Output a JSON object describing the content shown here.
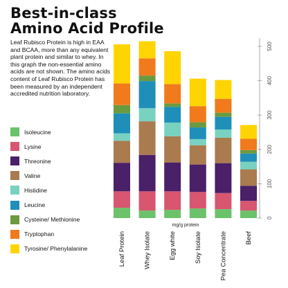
{
  "header": {
    "title_line1": "Best-in-class",
    "title_line2": "Amino Acid Profile",
    "description": "Leaf Rubisco Protein is high in EAA and BCAA, more than any equivalent plant protein and similar to whey. In this graph the non-essential amino acids are not shown. The amino acids content of Leaf Rubisco Protein has been measured by an independent accredited nutrition laboratory."
  },
  "chart_data": {
    "type": "bar",
    "stacked": true,
    "xlabel": "mg/g protein",
    "ylabel": "",
    "ylim": [
      0,
      520
    ],
    "yticks": [
      0,
      100,
      200,
      300,
      400,
      500
    ],
    "y_axis_side": "right",
    "grid": false,
    "legend_position": "left",
    "categories": [
      "Leaf Protein",
      "Whey Isolate",
      "Egg white",
      "Soy Isolate",
      "Pea Concentrate",
      "Beef"
    ],
    "series": [
      {
        "name": "Isoleucine",
        "color": "#6cc26a",
        "values": [
          30,
          22,
          24,
          28,
          26,
          22
        ]
      },
      {
        "name": "Lysine",
        "color": "#d8566f",
        "values": [
          48,
          56,
          54,
          48,
          47,
          28
        ]
      },
      {
        "name": "Threonine",
        "color": "#4a2068",
        "values": [
          83,
          106,
          84,
          80,
          87,
          44
        ]
      },
      {
        "name": "Valine",
        "color": "#a97b4f",
        "values": [
          64,
          98,
          76,
          56,
          74,
          48
        ]
      },
      {
        "name": "Histidine",
        "color": "#79d2c0",
        "values": [
          22,
          38,
          40,
          18,
          24,
          22
        ]
      },
      {
        "name": "Leucine",
        "color": "#1f8fba",
        "values": [
          58,
          79,
          46,
          34,
          37,
          24
        ]
      },
      {
        "name": "Cysteine/ Methionine",
        "color": "#6b9a3f",
        "values": [
          24,
          16,
          10,
          15,
          12,
          10
        ]
      },
      {
        "name": "Tryptophan",
        "color": "#f07a1c",
        "values": [
          63,
          50,
          56,
          47,
          40,
          33
        ]
      },
      {
        "name": "Tyrosine/ Phenylalanine",
        "color": "#ffd400",
        "values": [
          114,
          50,
          96,
          80,
          55,
          40
        ]
      }
    ]
  }
}
